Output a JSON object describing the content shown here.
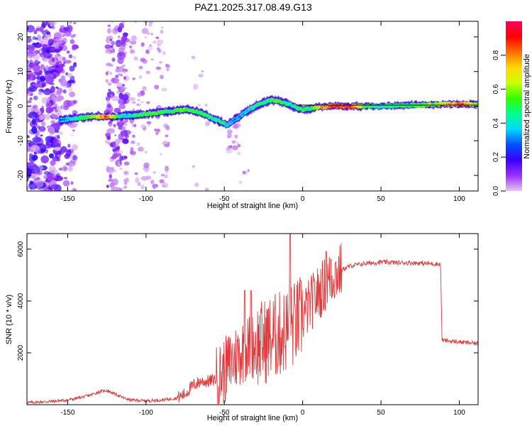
{
  "title": "PAZ1.2025.317.08.49.G13",
  "chart_data": [
    {
      "type": "heatmap",
      "xlabel": "Height of straight line (km)",
      "ylabel": "Frequency (Hz)",
      "xlim": [
        -176,
        112
      ],
      "ylim": [
        -24.5,
        24.5
      ],
      "xticks": [
        -150,
        -100,
        -50,
        0,
        50,
        100
      ],
      "yticks": [
        -20,
        -10,
        0,
        10,
        20
      ],
      "colorbar": {
        "label": "Normalized spectral amplitude",
        "range": [
          0,
          1
        ],
        "ticks": [
          "0.0",
          "0.2",
          "0.4",
          "0.6",
          "0.8"
        ],
        "colormap": [
          "#e8c6ee",
          "#9b30ff",
          "#3a00ff",
          "#0050ff",
          "#00d8ff",
          "#00ff90",
          "#30ff00",
          "#c8ff00",
          "#ffd800",
          "#ff7000",
          "#ff0000",
          "#ff0060"
        ]
      },
      "ridge": {
        "description_x": [
          -155,
          -145,
          -135,
          -125,
          -115,
          -105,
          -95,
          -85,
          -75,
          -68,
          -62,
          -58,
          -52,
          -48,
          -44,
          -40,
          -36,
          -32,
          -28,
          -24,
          -20,
          -16,
          -12,
          -8,
          -4,
          0,
          5,
          10,
          20,
          30,
          40,
          50,
          60,
          70,
          80,
          90,
          100,
          112
        ],
        "frequency": [
          -4,
          -3.5,
          -3,
          -3,
          -2.8,
          -2.5,
          -2,
          -1.5,
          -1,
          -1.5,
          -2.5,
          -3.5,
          -4.5,
          -5.5,
          -4,
          -3,
          -1.5,
          -0.5,
          0.5,
          1.2,
          1.8,
          1.5,
          1,
          0.5,
          -0.5,
          -1,
          -0.8,
          -0.2,
          0,
          0,
          0,
          0,
          0.2,
          0.3,
          0.4,
          0.6,
          0.6,
          0.5
        ],
        "amplitude": [
          0.25,
          0.4,
          0.55,
          0.85,
          0.35,
          0.45,
          0.55,
          0.45,
          0.55,
          0.45,
          0.5,
          0.4,
          0.45,
          0.35,
          0.3,
          0.3,
          0.35,
          0.4,
          0.45,
          0.4,
          0.5,
          0.55,
          0.45,
          0.4,
          0.45,
          0.5,
          0.45,
          0.7,
          0.95,
          0.95,
          0.5,
          0.4,
          0.45,
          0.5,
          0.55,
          0.7,
          0.9,
          0.55
        ]
      }
    },
    {
      "type": "line",
      "xlabel": "Height of straight line (km)",
      "ylabel": "SNR (10 * v/v)",
      "xlim": [
        -176,
        112
      ],
      "ylim": [
        0,
        6600
      ],
      "xticks": [
        -150,
        -100,
        -50,
        0,
        50,
        100
      ],
      "yticks": [
        2000,
        4000,
        6000
      ],
      "color": "#e03a3a",
      "x": [
        -176,
        -160,
        -150,
        -140,
        -135,
        -130,
        -125,
        -120,
        -115,
        -110,
        -100,
        -90,
        -80,
        -75,
        -70,
        -65,
        -60,
        -55,
        -50,
        -45,
        -40,
        -35,
        -30,
        -25,
        -20,
        -15,
        -10,
        -8,
        -5,
        0,
        5,
        10,
        15,
        20,
        25,
        30,
        40,
        50,
        60,
        70,
        80,
        88,
        89,
        90,
        100,
        112
      ],
      "y": [
        80,
        130,
        180,
        300,
        380,
        500,
        550,
        420,
        280,
        180,
        150,
        180,
        260,
        420,
        750,
        900,
        900,
        1000,
        1300,
        1700,
        2000,
        2200,
        2300,
        2400,
        2600,
        2700,
        2900,
        3000,
        3100,
        3400,
        3900,
        4300,
        4700,
        5000,
        5200,
        5350,
        5450,
        5500,
        5480,
        5470,
        5450,
        5420,
        2500,
        2480,
        2420,
        2360
      ],
      "spikes": [
        {
          "x": -8,
          "y": 6600
        },
        {
          "x": -37,
          "y": 4400
        },
        {
          "x": -33,
          "y": 4400
        },
        {
          "x": 15,
          "y": 5900
        },
        {
          "x": 18,
          "y": 5600
        }
      ]
    }
  ]
}
